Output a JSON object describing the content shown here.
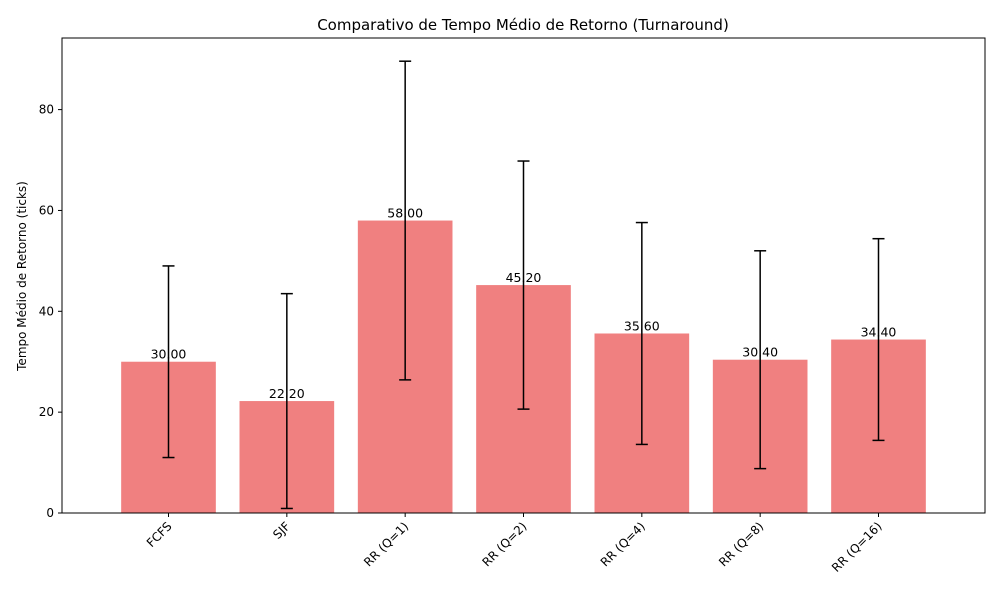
{
  "chart_data": {
    "type": "bar",
    "title": "Comparativo de Tempo Médio de Retorno (Turnaround)",
    "xlabel": "",
    "ylabel": "Tempo Médio de Retorno (ticks)",
    "categories": [
      "FCFS",
      "SJF",
      "RR (Q=1)",
      "RR (Q=2)",
      "RR (Q=4)",
      "RR (Q=8)",
      "RR (Q=16)"
    ],
    "values": [
      30.0,
      22.2,
      58.0,
      45.2,
      35.6,
      30.4,
      34.4
    ],
    "value_labels": [
      "30.00",
      "22.20",
      "58.00",
      "45.20",
      "35.60",
      "30.40",
      "34.40"
    ],
    "error": [
      19.0,
      21.3,
      31.6,
      24.6,
      22.0,
      21.6,
      20.0
    ],
    "ylim": [
      0,
      94.2
    ],
    "yticks": [
      0,
      20,
      40,
      60,
      80
    ],
    "ytick_labels": [
      "0",
      "20",
      "40",
      "60",
      "80"
    ],
    "bar_color": "#f08080",
    "grid": false,
    "legend": "none"
  }
}
